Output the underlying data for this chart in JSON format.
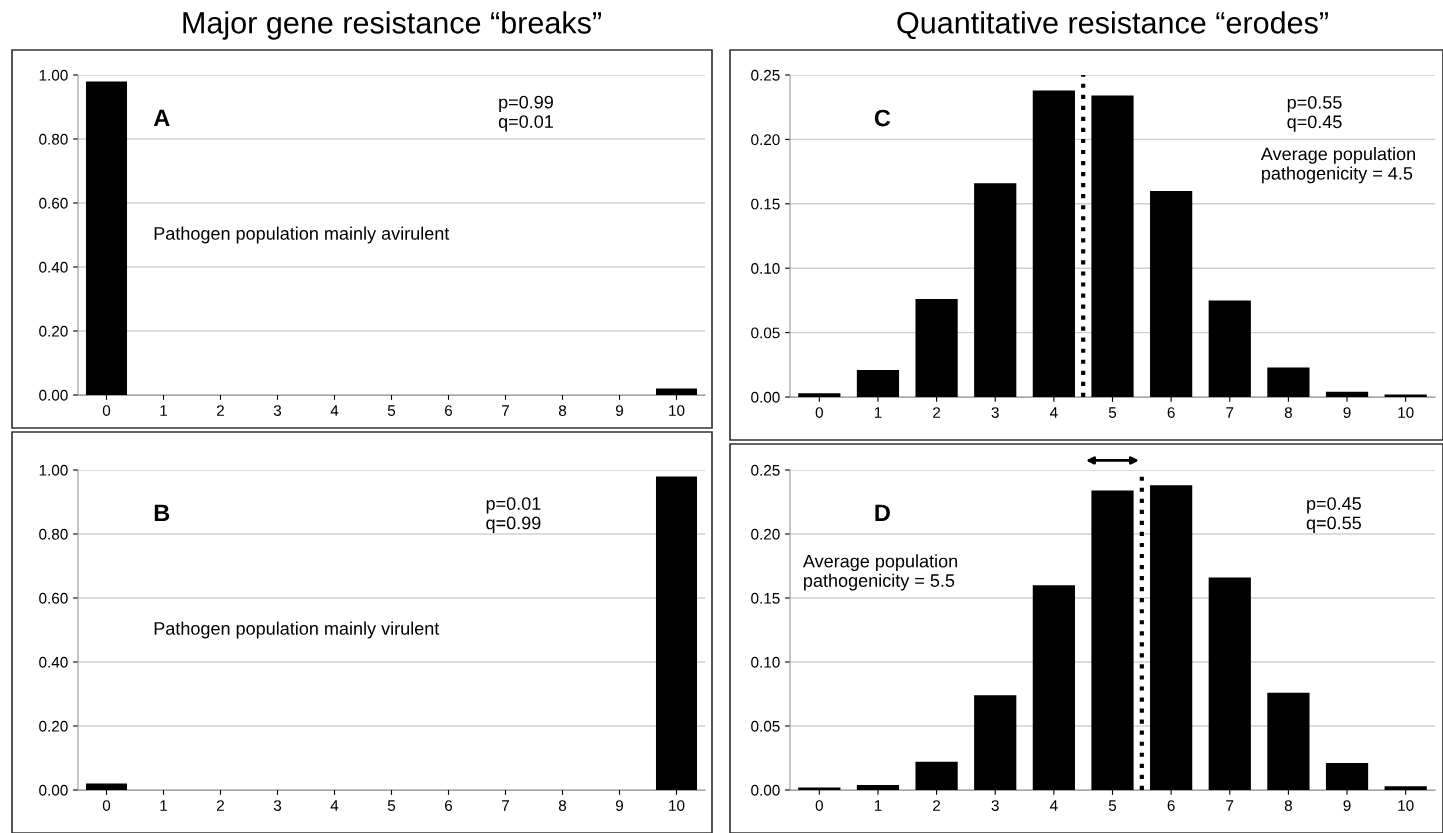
{
  "chart_data": [
    {
      "type": "bar",
      "title": "Major gene resistance “breaks”",
      "x": [
        0,
        1,
        2,
        3,
        4,
        5,
        6,
        7,
        8,
        9,
        10
      ],
      "values": [
        0.98,
        0,
        0,
        0,
        0,
        0,
        0,
        0,
        0,
        0,
        0.02
      ],
      "color": "#000000",
      "xlim": [
        -0.5,
        10.5
      ],
      "xticks": [
        0,
        1,
        2,
        3,
        4,
        5,
        6,
        7,
        8,
        9,
        10
      ],
      "ylim": [
        0,
        1
      ],
      "yticks": [
        {
          "value": 0,
          "label": "0.00"
        },
        {
          "value": 0.2,
          "label": "0.20"
        },
        {
          "value": 0.4,
          "label": "0.40"
        },
        {
          "value": 0.6,
          "label": "0.60"
        },
        {
          "value": 0.8,
          "label": "0.80"
        },
        {
          "value": 1,
          "label": "1.00"
        }
      ],
      "grid": "y",
      "annotations": [
        "A",
        "p=0.99\nq=0.01",
        "Pathogen population mainly avirulent"
      ]
    },
    {
      "type": "bar",
      "title": "Quantitative resistance “erodes”",
      "x": [
        0,
        1,
        2,
        3,
        4,
        5,
        6,
        7,
        8,
        9,
        10
      ],
      "values": [
        0.003,
        0.021,
        0.076,
        0.166,
        0.238,
        0.234,
        0.16,
        0.075,
        0.023,
        0.004,
        0.002
      ],
      "color": "#000000",
      "xlim": [
        -0.5,
        10.5
      ],
      "xticks": [
        0,
        1,
        2,
        3,
        4,
        5,
        6,
        7,
        8,
        9,
        10
      ],
      "ylim": [
        0,
        0.25
      ],
      "yticks": [
        {
          "value": 0,
          "label": "0.00"
        },
        {
          "value": 0.05,
          "label": "0.05"
        },
        {
          "value": 0.1,
          "label": "0.10"
        },
        {
          "value": 0.15,
          "label": "0.15"
        },
        {
          "value": 0.2,
          "label": "0.20"
        },
        {
          "value": 0.25,
          "label": "0.25"
        }
      ],
      "grid": "y",
      "ref_lines": [
        {
          "axis": "x",
          "value": 4.5,
          "color": "#000000",
          "line_style": "dotted"
        }
      ],
      "annotations": [
        "C",
        "p=0.55\nq=0.45",
        "Average population\npathogenicity = 4.5"
      ]
    },
    {
      "type": "bar",
      "x": [
        0,
        1,
        2,
        3,
        4,
        5,
        6,
        7,
        8,
        9,
        10
      ],
      "values": [
        0.02,
        0,
        0,
        0,
        0,
        0,
        0,
        0,
        0,
        0,
        0.98
      ],
      "color": "#000000",
      "xlim": [
        -0.5,
        10.5
      ],
      "xticks": [
        0,
        1,
        2,
        3,
        4,
        5,
        6,
        7,
        8,
        9,
        10
      ],
      "ylim": [
        0,
        1
      ],
      "yticks": [
        {
          "value": 0,
          "label": "0.00"
        },
        {
          "value": 0.2,
          "label": "0.20"
        },
        {
          "value": 0.4,
          "label": "0.40"
        },
        {
          "value": 0.6,
          "label": "0.60"
        },
        {
          "value": 0.8,
          "label": "0.80"
        },
        {
          "value": 1,
          "label": "1.00"
        }
      ],
      "grid": "y",
      "annotations": [
        "B",
        "p=0.01\nq=0.99",
        "Pathogen population mainly virulent"
      ]
    },
    {
      "type": "bar",
      "x": [
        0,
        1,
        2,
        3,
        4,
        5,
        6,
        7,
        8,
        9,
        10
      ],
      "values": [
        0.002,
        0.004,
        0.022,
        0.074,
        0.16,
        0.234,
        0.238,
        0.166,
        0.076,
        0.021,
        0.003
      ],
      "color": "#000000",
      "xlim": [
        -0.5,
        10.5
      ],
      "xticks": [
        0,
        1,
        2,
        3,
        4,
        5,
        6,
        7,
        8,
        9,
        10
      ],
      "ylim": [
        0,
        0.25
      ],
      "yticks": [
        {
          "value": 0,
          "label": "0.00"
        },
        {
          "value": 0.05,
          "label": "0.05"
        },
        {
          "value": 0.1,
          "label": "0.10"
        },
        {
          "value": 0.15,
          "label": "0.15"
        },
        {
          "value": 0.2,
          "label": "0.20"
        },
        {
          "value": 0.25,
          "label": "0.25"
        }
      ],
      "grid": "y",
      "ref_lines": [
        {
          "axis": "x",
          "value": 5.5,
          "color": "#000000",
          "line_style": "dotted"
        }
      ],
      "annotations": [
        "D",
        "p=0.45\nq=0.55",
        "Average population\npathogenicity = 5.5"
      ]
    }
  ]
}
